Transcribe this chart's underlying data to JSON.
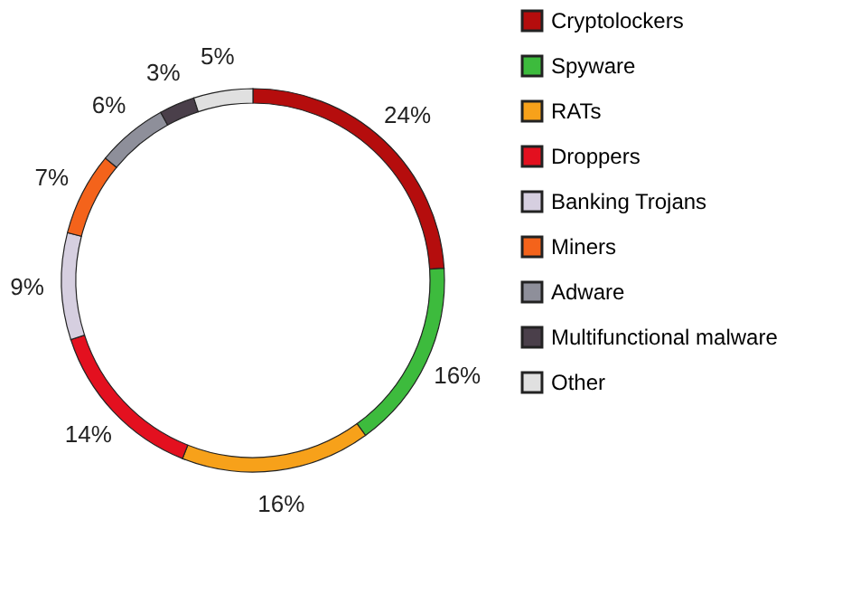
{
  "chart_data": {
    "type": "donut",
    "categories": [
      "Cryptolockers",
      "Spyware",
      "RATs",
      "Droppers",
      "Banking Trojans",
      "Miners",
      "Adware",
      "Multifunctional malware",
      "Other"
    ],
    "values": [
      24,
      16,
      16,
      14,
      9,
      7,
      6,
      3,
      5
    ],
    "colors": [
      "#b50d0d",
      "#3dbb3d",
      "#f7a11a",
      "#e3101f",
      "#d6cfe0",
      "#f4631b",
      "#8e8f9a",
      "#4a3f4a",
      "#e0e0e0"
    ],
    "value_labels": [
      "24%",
      "16%",
      "16%",
      "14%",
      "9%",
      "7%",
      "6%",
      "3%",
      "5%"
    ],
    "legend": "right"
  }
}
